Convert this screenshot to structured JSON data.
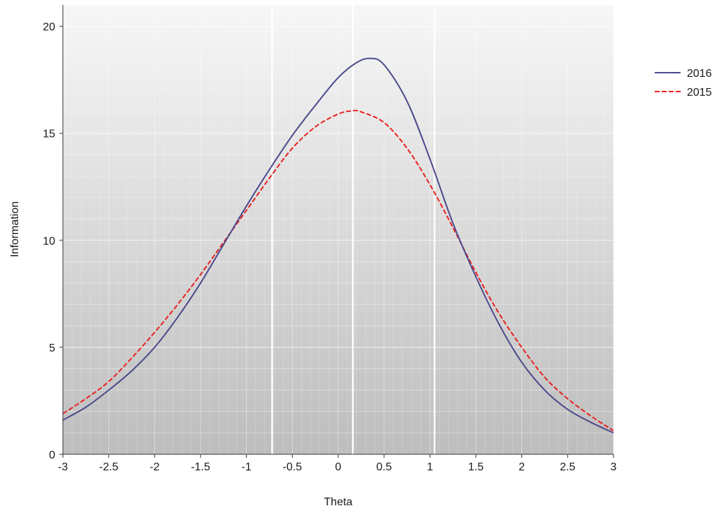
{
  "chart_data": {
    "type": "line",
    "title": "",
    "xlabel": "Theta",
    "ylabel": "Information",
    "xlim": [
      -3,
      3
    ],
    "ylim": [
      0,
      21
    ],
    "xticks": [
      -3,
      -2.5,
      -2,
      -1.5,
      -1,
      -0.5,
      0,
      0.5,
      1,
      1.5,
      2,
      2.5,
      3
    ],
    "xtick_labels": [
      "-3",
      "-2.5",
      "-2",
      "-1.5",
      "-1",
      "-0.5",
      "0",
      "0.5",
      "1",
      "1.5",
      "2",
      "2.5",
      "3"
    ],
    "yticks": [
      0,
      5,
      10,
      15,
      20
    ],
    "ytick_labels": [
      "0",
      "5",
      "10",
      "15",
      "20"
    ],
    "grid": true,
    "legend_position": "right",
    "reference_lines_x": [
      -0.72,
      0.16,
      1.05
    ],
    "series": [
      {
        "name": "2016",
        "color": "#4a4a8c",
        "style": "solid",
        "x": [
          -3,
          -2.75,
          -2.5,
          -2.25,
          -2,
          -1.75,
          -1.5,
          -1.25,
          -1,
          -0.75,
          -0.5,
          -0.25,
          0,
          0.2,
          0.35,
          0.5,
          0.75,
          1,
          1.25,
          1.5,
          1.75,
          2,
          2.25,
          2.5,
          2.75,
          3
        ],
        "y": [
          1.6,
          2.2,
          3.0,
          3.9,
          5.0,
          6.4,
          8.0,
          9.8,
          11.6,
          13.3,
          14.9,
          16.3,
          17.6,
          18.3,
          18.5,
          18.2,
          16.5,
          13.8,
          10.8,
          8.3,
          6.1,
          4.3,
          3.0,
          2.1,
          1.5,
          1.0
        ]
      },
      {
        "name": "2015",
        "color": "#e8201e",
        "style": "dashed",
        "x": [
          -3,
          -2.75,
          -2.5,
          -2.25,
          -2,
          -1.75,
          -1.5,
          -1.25,
          -1,
          -0.75,
          -0.5,
          -0.25,
          0,
          0.15,
          0.25,
          0.5,
          0.75,
          1,
          1.25,
          1.5,
          1.75,
          2,
          2.25,
          2.5,
          2.75,
          3
        ],
        "y": [
          1.9,
          2.6,
          3.4,
          4.5,
          5.7,
          7.0,
          8.4,
          9.9,
          11.4,
          12.9,
          14.3,
          15.3,
          15.9,
          16.05,
          16.0,
          15.5,
          14.3,
          12.6,
          10.6,
          8.5,
          6.6,
          5.0,
          3.6,
          2.6,
          1.8,
          1.1
        ]
      }
    ]
  }
}
